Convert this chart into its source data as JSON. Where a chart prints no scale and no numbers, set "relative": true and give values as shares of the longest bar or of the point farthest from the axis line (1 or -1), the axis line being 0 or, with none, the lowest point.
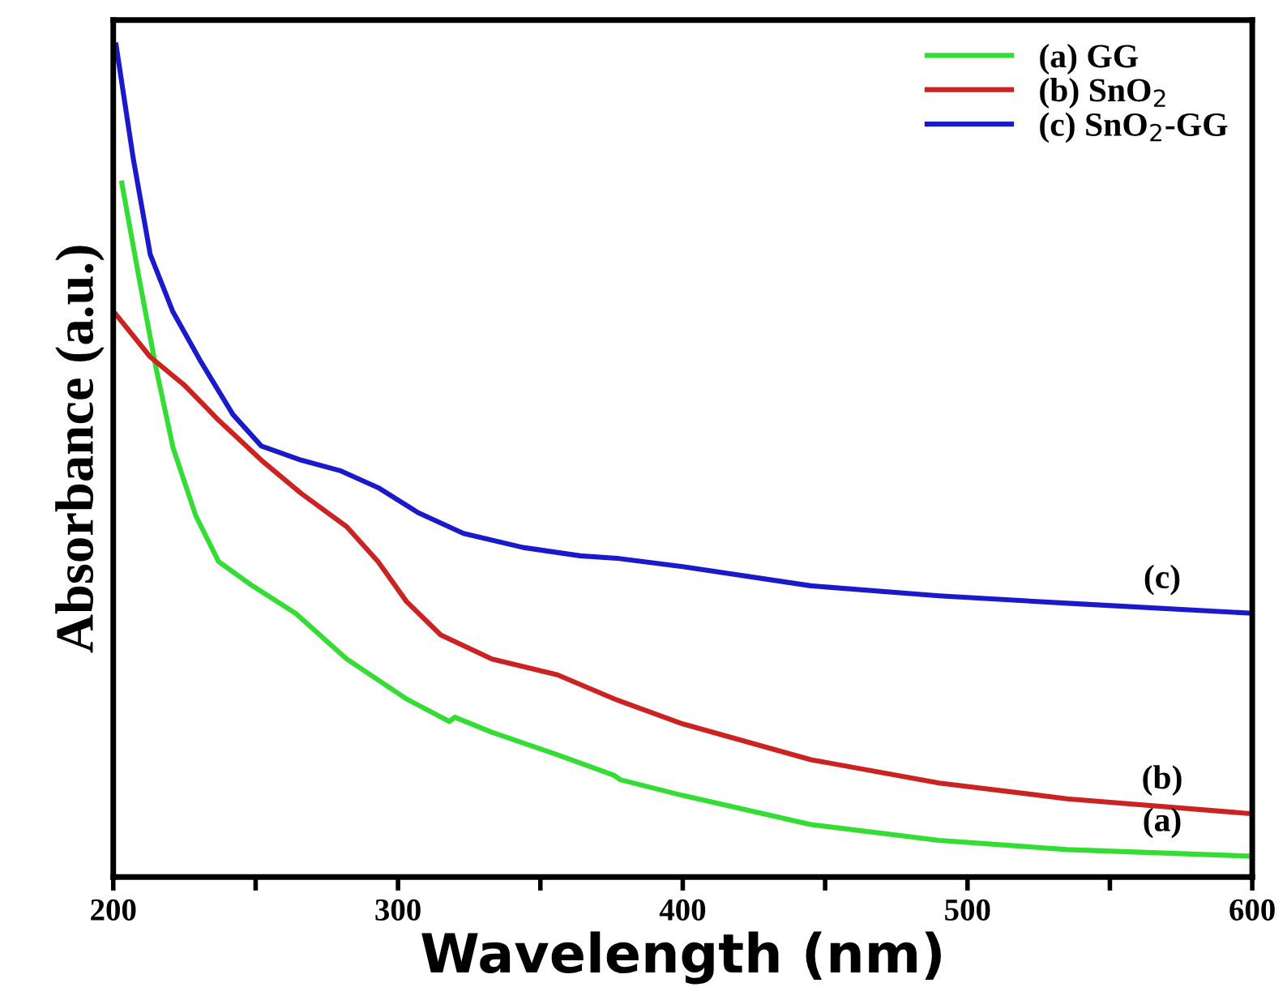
{
  "chart_data": {
    "type": "line",
    "relative": true,
    "xlabel": "Wavelength (nm)",
    "ylabel": "Absorbance (a.u.)",
    "xlim": [
      200,
      600
    ],
    "xticks": [
      200,
      {
        "value": 250,
        "label": null
      },
      300,
      {
        "value": 350,
        "label": null
      },
      400,
      {
        "value": 450,
        "label": null
      },
      500,
      {
        "value": 550,
        "label": null
      },
      600
    ],
    "tick_labels": "x",
    "grid": false,
    "legend": "top right",
    "line_style": "solid",
    "marker": "none",
    "series": [
      {
        "name": "(a) GG",
        "color": "#33dd33",
        "x": [
          203,
          209,
          215,
          221,
          229,
          237,
          248,
          264,
          282,
          303,
          318,
          320,
          333,
          356,
          376,
          378,
          400,
          445,
          490,
          535,
          600
        ],
        "values": [
          0.834,
          0.721,
          0.612,
          0.516,
          0.434,
          0.379,
          0.352,
          0.317,
          0.262,
          0.214,
          0.187,
          0.192,
          0.174,
          0.147,
          0.122,
          0.117,
          0.098,
          0.063,
          0.044,
          0.033,
          0.025
        ]
      },
      {
        "name": "(b) SnO$_{2}$",
        "color": "#cc2222",
        "x": [
          201,
          213,
          225,
          237,
          252,
          266,
          282,
          293,
          303,
          315,
          333,
          356,
          376,
          400,
          445,
          490,
          535,
          600
        ],
        "values": [
          0.676,
          0.625,
          0.591,
          0.549,
          0.501,
          0.461,
          0.421,
          0.379,
          0.331,
          0.291,
          0.262,
          0.243,
          0.214,
          0.184,
          0.141,
          0.113,
          0.094,
          0.076
        ]
      },
      {
        "name": "(c) SnO$_{2}$-GG",
        "color": "#1a1acc",
        "x": [
          201,
          207,
          213,
          221,
          231,
          242,
          252,
          266,
          280,
          293,
          307,
          323,
          344,
          364,
          377,
          400,
          445,
          490,
          535,
          600
        ],
        "values": [
          1.0,
          0.864,
          0.748,
          0.679,
          0.618,
          0.556,
          0.518,
          0.501,
          0.488,
          0.468,
          0.438,
          0.413,
          0.396,
          0.386,
          0.383,
          0.373,
          0.35,
          0.338,
          0.329,
          0.317
        ]
      }
    ],
    "annotations": [
      "(a)",
      "(b)",
      "(c)"
    ]
  }
}
